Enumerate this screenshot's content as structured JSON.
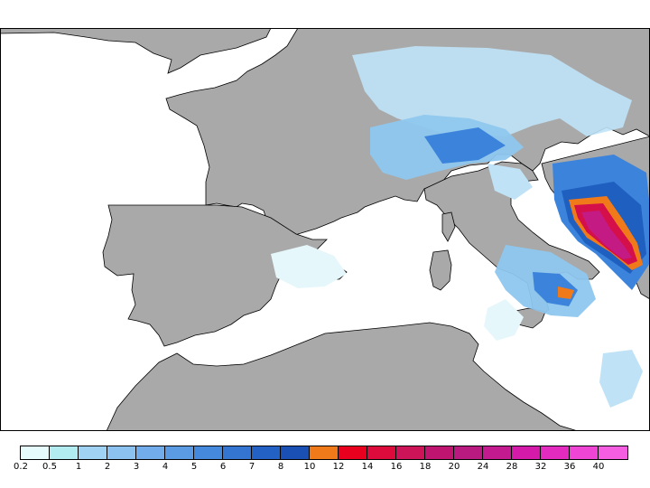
{
  "colors": {
    "land": "#a9a9a9",
    "sea": "#ffffff",
    "coast": "#000000",
    "precip_light": "#d6f4fb",
    "precip_mid": "#8ec7ee",
    "precip_blue": "#3b83db",
    "precip_dark": "#1f5fbf",
    "precip_orange": "#f07a1a",
    "precip_red": "#d40f4a",
    "precip_magenta": "#c41a84"
  },
  "legend": {
    "labels": [
      "0.2",
      "0.5",
      "1",
      "2",
      "3",
      "4",
      "5",
      "6",
      "7",
      "8",
      "10",
      "12",
      "14",
      "16",
      "18",
      "20",
      "24",
      "28",
      "32",
      "36",
      "40"
    ],
    "swatches": [
      "#e6fbfb",
      "#b2ecf0",
      "#9fd2f3",
      "#8cc2ef",
      "#72acea",
      "#5b9be4",
      "#4589dc",
      "#3475d2",
      "#2461c4",
      "#1a4fb3",
      "#f07a1a",
      "#e8001e",
      "#dc0b3c",
      "#cd1458",
      "#bf1570",
      "#b81a80",
      "#c41a90",
      "#d41aa8",
      "#e42bc0",
      "#ee45d4",
      "#f55ee0"
    ]
  }
}
